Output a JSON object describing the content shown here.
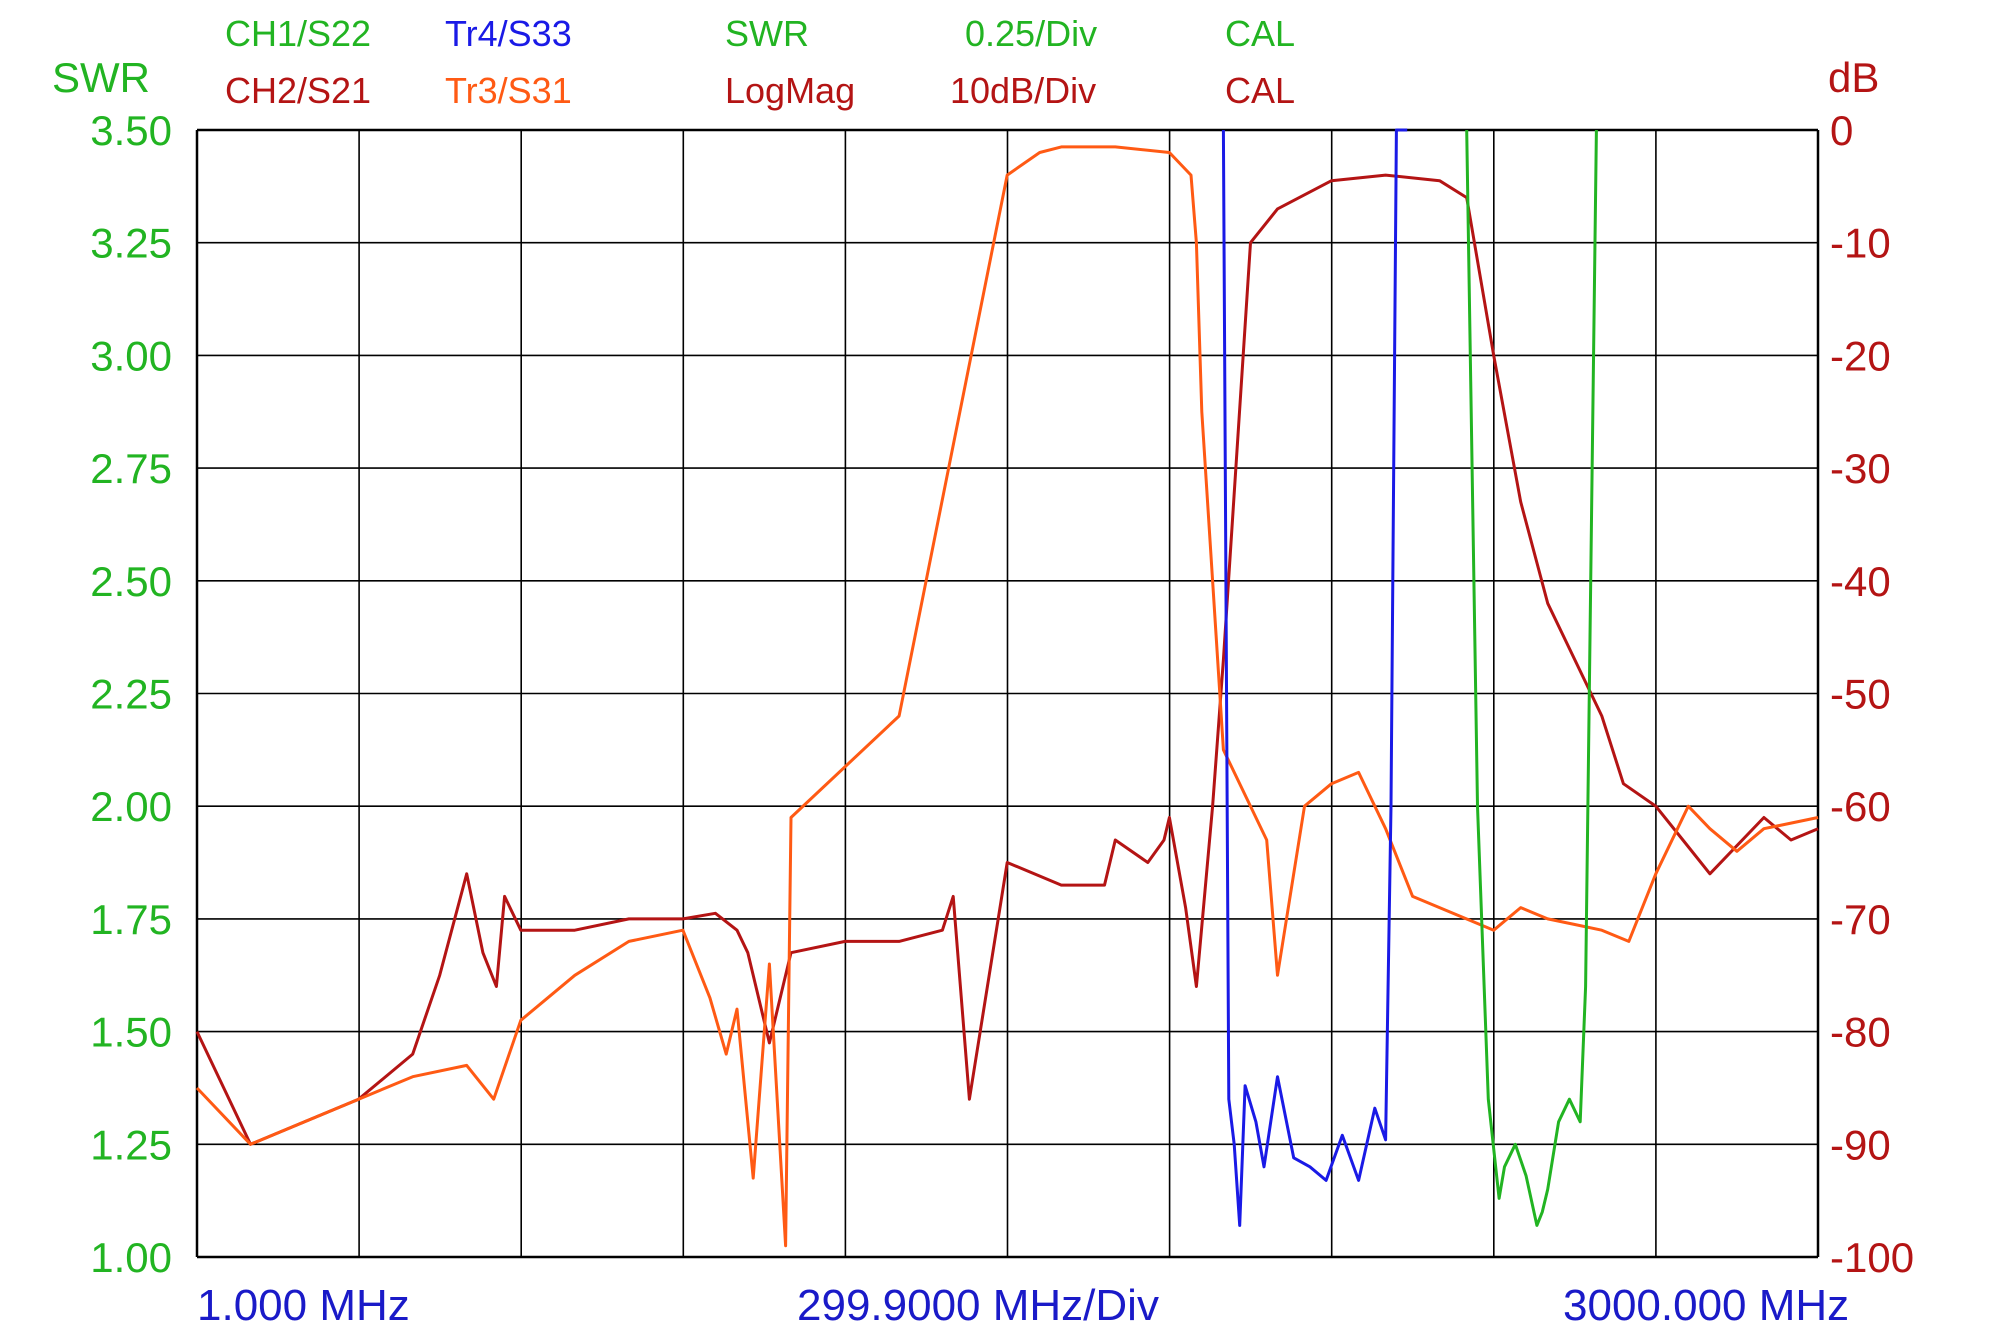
{
  "header": {
    "row1": [
      {
        "text": "CH1/S22",
        "color": "#22b422"
      },
      {
        "text": "Tr4/S33",
        "color": "#1a1ae6"
      },
      {
        "text": "SWR",
        "color": "#22b422"
      },
      {
        "text": "0.25/Div",
        "color": "#22b422"
      },
      {
        "text": "CAL",
        "color": "#22b422"
      }
    ],
    "row2": [
      {
        "text": "CH2/S21",
        "color": "#b41414"
      },
      {
        "text": "Tr3/S31",
        "color": "#ff5a14"
      },
      {
        "text": "LogMag",
        "color": "#b41414"
      },
      {
        "text": "10dB/Div",
        "color": "#b41414"
      },
      {
        "text": "CAL",
        "color": "#b41414"
      }
    ]
  },
  "axes": {
    "left_title": "SWR",
    "right_title": "dB",
    "left_ticks": [
      "3.50",
      "3.25",
      "3.00",
      "2.75",
      "2.50",
      "2.25",
      "2.00",
      "1.75",
      "1.50",
      "1.25",
      "1.00"
    ],
    "right_ticks": [
      "0",
      "-10",
      "-20",
      "-30",
      "-40",
      "-50",
      "-60",
      "-70",
      "-80",
      "-90",
      "-100"
    ],
    "x_start": "1.000 MHz",
    "x_div": "299.9000 MHz/Div",
    "x_stop": "3000.000 MHz"
  },
  "colors": {
    "swr_axis": "#22b422",
    "db_axis": "#b41414",
    "x_axis": "#1a1ac8",
    "grid": "#000000"
  },
  "chart_data": {
    "type": "line",
    "x_unit": "MHz",
    "xlim": [
      1,
      3000
    ],
    "y_left_label": "SWR",
    "y_left_lim": [
      1.0,
      3.5
    ],
    "y_right_label": "dB",
    "y_right_lim": [
      -100,
      0
    ],
    "grid": true,
    "series": [
      {
        "name": "CH2/S21",
        "axis": "right",
        "color": "#b41414",
        "x": [
          1,
          100,
          200,
          300,
          400,
          450,
          500,
          530,
          555,
          570,
          600,
          700,
          800,
          900,
          960,
          1000,
          1020,
          1060,
          1100,
          1200,
          1300,
          1380,
          1400,
          1430,
          1500,
          1600,
          1680,
          1700,
          1760,
          1790,
          1800,
          1830,
          1850,
          1880,
          1900,
          1950,
          2000,
          2100,
          2200,
          2300,
          2350,
          2400,
          2450,
          2500,
          2600,
          2640,
          2700,
          2750,
          2800,
          2900,
          2950,
          3000
        ],
        "y": [
          -80,
          -90,
          -88,
          -86,
          -82,
          -75,
          -66,
          -73,
          -76,
          -68,
          -71,
          -71,
          -70,
          -70,
          -69.5,
          -71,
          -73,
          -81,
          -73,
          -72,
          -72,
          -71,
          -68,
          -86,
          -65,
          -67,
          -67,
          -63,
          -65,
          -63,
          -61,
          -69,
          -76,
          -60,
          -47,
          -10,
          -7,
          -4.5,
          -4,
          -4.5,
          -6,
          -20,
          -33,
          -42,
          -52,
          -58,
          -60,
          -63,
          -66,
          -61,
          -63,
          -62
        ]
      },
      {
        "name": "Tr3/S31",
        "axis": "right",
        "color": "#ff5a14",
        "x": [
          1,
          100,
          200,
          300,
          400,
          500,
          550,
          600,
          650,
          700,
          800,
          900,
          950,
          980,
          1000,
          1030,
          1060,
          1090,
          1100,
          1300,
          1500,
          1560,
          1600,
          1700,
          1800,
          1840,
          1850,
          1860,
          1880,
          1900,
          1980,
          2000,
          2050,
          2100,
          2150,
          2200,
          2250,
          2400,
          2450,
          2500,
          2550,
          2600,
          2650,
          2700,
          2760,
          2800,
          2850,
          2900,
          3000
        ],
        "y": [
          -85,
          -90,
          -88,
          -86,
          -84,
          -83,
          -86,
          -79,
          -77,
          -75,
          -72,
          -71,
          -77,
          -82,
          -78,
          -93,
          -74,
          -99,
          -61,
          -52,
          -4,
          -2,
          -1.5,
          -1.5,
          -2,
          -4,
          -10,
          -25,
          -40,
          -55,
          -63,
          -75,
          -60,
          -58,
          -57,
          -62,
          -68,
          -71,
          -69,
          -70,
          -70.5,
          -71,
          -72,
          -66,
          -60,
          -62,
          -64,
          -62,
          -61
        ]
      },
      {
        "name": "Tr4/S33",
        "axis": "left",
        "color": "#1a1ae6",
        "x": [
          1900,
          1910,
          1920,
          1930,
          1940,
          1960,
          1975,
          2000,
          2030,
          2060,
          2090,
          2120,
          2150,
          2180,
          2200,
          2210,
          2220,
          2240
        ],
        "y": [
          3.5,
          1.35,
          1.25,
          1.07,
          1.38,
          1.3,
          1.2,
          1.4,
          1.22,
          1.2,
          1.17,
          1.27,
          1.17,
          1.33,
          1.26,
          2.0,
          3.5,
          3.5
        ]
      },
      {
        "name": "CH1/S22",
        "axis": "left",
        "color": "#22b422",
        "x": [
          2350,
          2370,
          2390,
          2410,
          2420,
          2440,
          2460,
          2480,
          2490,
          2500,
          2520,
          2540,
          2560,
          2570,
          2590
        ],
        "y": [
          3.5,
          2.0,
          1.35,
          1.13,
          1.2,
          1.25,
          1.18,
          1.07,
          1.1,
          1.15,
          1.3,
          1.35,
          1.3,
          1.6,
          3.5
        ]
      }
    ]
  }
}
